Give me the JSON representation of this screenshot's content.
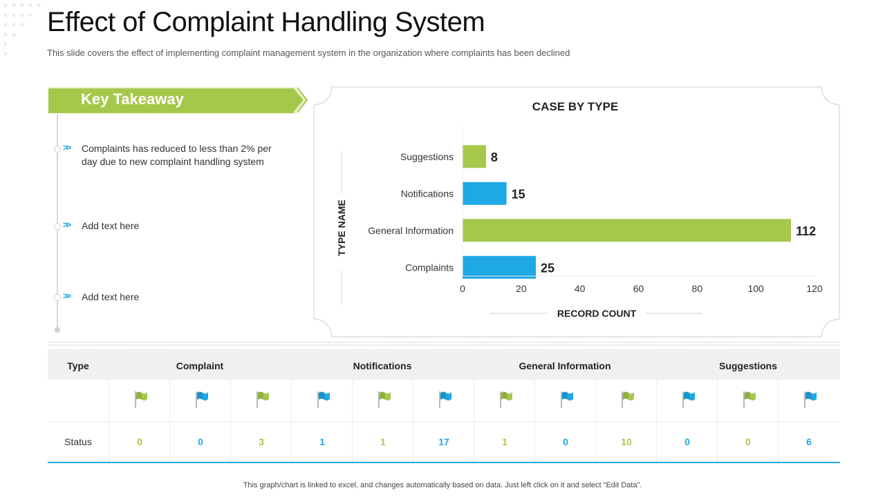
{
  "title": "Effect of Complaint Handling System",
  "subtitle": "This slide covers the effect of implementing complaint management system in the organization where complaints has been declined",
  "colors": {
    "green": "#a6c84a",
    "blue": "#1ea8e4"
  },
  "key_takeaway": {
    "label": "Key Takeaway",
    "items": [
      "Complaints has reduced to less than 2% per day due to new complaint handling system",
      "Add text here",
      "Add text here"
    ]
  },
  "chart_data": {
    "type": "bar",
    "orientation": "horizontal",
    "title": "CASE BY TYPE",
    "xlabel": "RECORD COUNT",
    "ylabel": "TYPE NAME",
    "categories": [
      "Suggestions",
      "Notifications",
      "General Information",
      "Complaints"
    ],
    "values": [
      8,
      15,
      112,
      25
    ],
    "bar_colors": [
      "#a6c84a",
      "#1ea8e4",
      "#a6c84a",
      "#1ea8e4"
    ],
    "xlim": [
      0,
      120
    ],
    "xticks": [
      0,
      20,
      40,
      60,
      80,
      100,
      120
    ],
    "grid": false
  },
  "table": {
    "headers": [
      "Type",
      "Complaint",
      "Notifications",
      "General Information",
      "Suggestions"
    ],
    "status_label": "Status",
    "flags": [
      "green-flag-icon",
      "blue-flag-icon",
      "green-flag-icon",
      "blue-flag-icon",
      "green-flag-icon",
      "blue-flag-icon",
      "green-flag-icon",
      "blue-flag-icon",
      "green-flag-icon",
      "blue-flag-icon",
      "green-flag-icon",
      "blue-flag-icon"
    ],
    "status_values": [
      "0",
      "0",
      "3",
      "1",
      "1",
      "17",
      "1",
      "0",
      "10",
      "0",
      "0",
      "6"
    ]
  },
  "footer": "This graph/chart is linked to excel, and changes automatically based on data. Just left click on it and select “Edit Data”."
}
